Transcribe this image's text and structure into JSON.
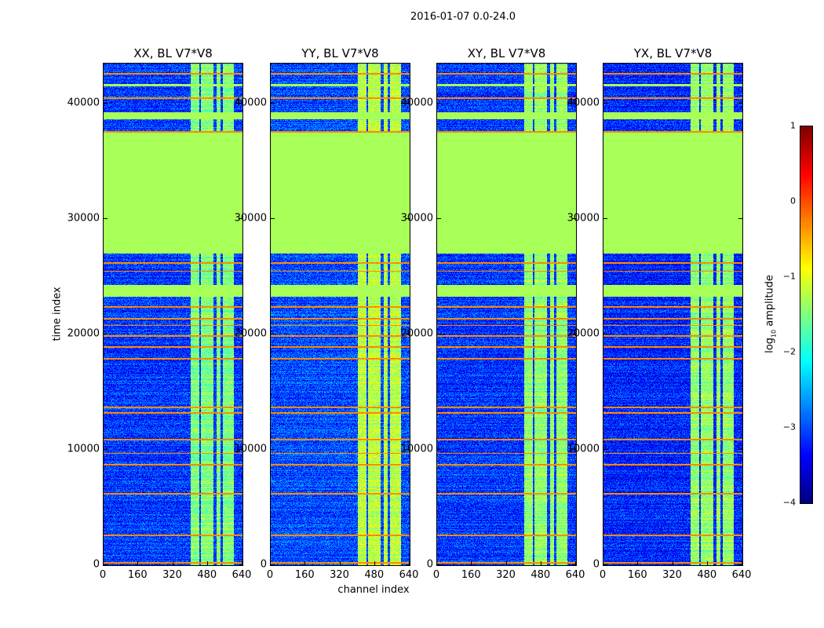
{
  "chart_data": {
    "type": "heatmap",
    "title": "2016-01-07 0.0-24.0",
    "panels": [
      {
        "title": "XX, BL V7*V8",
        "noise_level": -3.1,
        "signal_level": -1.0
      },
      {
        "title": "YY, BL V7*V8",
        "noise_level": -3.0,
        "signal_level": -0.7
      },
      {
        "title": "XY, BL V7*V8",
        "noise_level": -3.1,
        "signal_level": -0.9
      },
      {
        "title": "YX, BL V7*V8",
        "noise_level": -3.2,
        "signal_level": -0.9
      }
    ],
    "xlabel": "channel index",
    "ylabel": "time index",
    "xlim": [
      0,
      640
    ],
    "ylim": [
      0,
      43500
    ],
    "xticks": [
      "0",
      "160",
      "320",
      "480",
      "640"
    ],
    "yticks": [
      "0",
      "10000",
      "20000",
      "30000",
      "40000"
    ],
    "flagged_time_ranges": [
      [
        27000,
        37500
      ],
      [
        38700,
        39300
      ],
      [
        23300,
        24300
      ],
      [
        41500,
        41700
      ]
    ],
    "flagged_value": -1.3,
    "rfi_time_lines": [
      200,
      2600,
      6200,
      8700,
      9700,
      10900,
      13200,
      13700,
      17900,
      18900,
      19900,
      20800,
      21400,
      22400,
      25500,
      26200,
      37600,
      40500,
      42600
    ],
    "signal_channel_ranges": [
      [
        400,
        440
      ],
      [
        450,
        505
      ],
      [
        520,
        540
      ],
      [
        550,
        600
      ]
    ],
    "colorbar": {
      "label": "log10 amplitude",
      "label_main": "log",
      "label_sub": "10",
      "label_rest": " amplitude",
      "range": [
        -4,
        1
      ],
      "ticks": [
        "1",
        "0",
        "−1",
        "−2",
        "−3",
        "−4"
      ],
      "colormap": "jet"
    }
  }
}
